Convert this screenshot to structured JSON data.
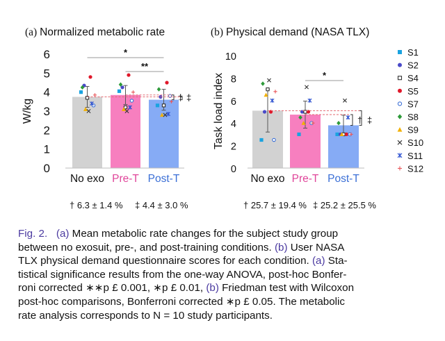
{
  "panels": [
    {
      "id": "a",
      "panel_label": "(a)",
      "title": "Normalized metabolic rate",
      "ylabel": "W/kg",
      "conditions": [
        "No exo",
        "Pre-T",
        "Post-T"
      ],
      "significance": [
        {
          "from": 0,
          "to": 2,
          "text": "*"
        },
        {
          "from": 1,
          "to": 2,
          "text": "**"
        }
      ],
      "daggers": [
        "†",
        "‡"
      ],
      "footer": [
        {
          "symbol": "†",
          "text": "6.3 ± 1.4 %"
        },
        {
          "symbol": "‡",
          "text": "4.4 ± 3.0 %"
        }
      ]
    },
    {
      "id": "b",
      "panel_label": "(b)",
      "title": "Physical demand (NASA TLX)",
      "ylabel": "Task load index",
      "conditions": [
        "No exo",
        "Pre-T",
        "Post-T"
      ],
      "significance": [
        {
          "from": 1,
          "to": 2,
          "text": "*"
        }
      ],
      "daggers": [
        "†",
        "‡"
      ],
      "footer": [
        {
          "symbol": "†",
          "text": "25.7 ± 19.4 %"
        },
        {
          "symbol": "‡",
          "text": "25.2 ± 25.5 %"
        }
      ]
    }
  ],
  "legend": [
    {
      "label": "S1",
      "marker": "square",
      "color": "#1aa3e0"
    },
    {
      "label": "S2",
      "marker": "circle",
      "color": "#4a4ac8"
    },
    {
      "label": "S4",
      "marker": "open-square",
      "color": "#333333"
    },
    {
      "label": "S5",
      "marker": "circle",
      "color": "#e0182a"
    },
    {
      "label": "S7",
      "marker": "open-circle",
      "color": "#3b6fd6"
    },
    {
      "label": "S8",
      "marker": "diamond",
      "color": "#2e9a3a"
    },
    {
      "label": "S9",
      "marker": "triangle",
      "color": "#f2b000"
    },
    {
      "label": "S10",
      "marker": "x",
      "color": "#333333"
    },
    {
      "label": "S11",
      "marker": "star",
      "color": "#2a4fd0"
    },
    {
      "label": "S12",
      "marker": "plus",
      "color": "#e8555a"
    }
  ],
  "colors": {
    "No exo": "#d2d2d2",
    "Pre-T": "#f77fbf",
    "Post-T": "#86abf5",
    "Pre-T label": "#e0459a",
    "Post-T label": "#3b6fd6",
    "reference line": "#e36a72"
  },
  "chart_data": [
    {
      "type": "bar",
      "title": "Normalized metabolic rate",
      "ylabel": "W/kg",
      "categories": [
        "No exo",
        "Pre-T",
        "Post-T"
      ],
      "values": [
        3.75,
        3.85,
        3.6
      ],
      "error": [
        0.55,
        0.5,
        0.55
      ],
      "ylim": [
        0,
        6
      ],
      "yticks": [
        0,
        1,
        2,
        3,
        4,
        5,
        6
      ],
      "grid": false,
      "legend": "right",
      "subjects": {
        "S1": [
          4.0,
          4.05,
          3.3
        ],
        "S2": [
          4.35,
          4.25,
          3.75
        ],
        "S4": [
          3.7,
          3.2,
          3.3
        ],
        "S5": [
          4.8,
          4.9,
          4.5
        ],
        "S7": [
          3.3,
          3.55,
          3.8
        ],
        "S8": [
          4.25,
          4.4,
          4.15
        ],
        "S9": [
          3.1,
          3.1,
          2.8
        ],
        "S10": [
          3.0,
          3.0,
          2.8
        ],
        "S11": [
          3.4,
          3.2,
          2.85
        ],
        "S12": [
          3.85,
          4.0,
          3.5
        ]
      }
    },
    {
      "type": "bar",
      "title": "Physical demand (NASA TLX)",
      "ylabel": "Task load index",
      "categories": [
        "No exo",
        "Pre-T",
        "Post-T"
      ],
      "values": [
        5.1,
        4.75,
        3.8
      ],
      "error": [
        1.9,
        1.2,
        0.9
      ],
      "ylim": [
        0,
        10
      ],
      "yticks": [
        0,
        2,
        4,
        6,
        8,
        10
      ],
      "grid": false,
      "legend": "right",
      "subjects": {
        "S1": [
          2.5,
          3.0,
          3.0
        ],
        "S2": [
          5.0,
          5.0,
          3.0
        ],
        "S4": [
          7.0,
          5.0,
          3.0
        ],
        "S5": [
          5.0,
          5.0,
          3.0
        ],
        "S7": [
          2.5,
          4.0,
          3.0
        ],
        "S8": [
          7.5,
          4.5,
          4.0
        ],
        "S9": [
          6.5,
          4.0,
          3.0
        ],
        "S10": [
          7.8,
          7.2,
          6.0
        ],
        "S11": [
          6.0,
          6.0,
          4.5
        ],
        "S12": [
          6.8,
          4.0,
          3.0
        ]
      }
    }
  ],
  "caption_lines": [
    [
      {
        "t": "Fig. 2.",
        "c": "fig-label"
      },
      {
        "t": "   ",
        "c": ""
      },
      {
        "t": "(a)",
        "c": "ref"
      },
      {
        "t": " Mean metabolic rate changes for the subject study group",
        "c": ""
      }
    ],
    [
      {
        "t": "between no exosuit, pre-, and post-training conditions. ",
        "c": ""
      },
      {
        "t": "(b)",
        "c": "ref"
      },
      {
        "t": " User NASA",
        "c": ""
      }
    ],
    [
      {
        "t": "TLX physical demand questionnaire scores for each condition. ",
        "c": ""
      },
      {
        "t": "(a)",
        "c": "ref"
      },
      {
        "t": " Sta-",
        "c": ""
      }
    ],
    [
      {
        "t": "tistical significance results from the one-way ANOVA, post-hoc Bonfer-",
        "c": ""
      }
    ],
    [
      {
        "t": "roni corrected ∗∗p £ 0.001, ∗p £ 0.01, ",
        "c": ""
      },
      {
        "t": "(b)",
        "c": "ref"
      },
      {
        "t": " Friedman test with Wilcoxon",
        "c": ""
      }
    ],
    [
      {
        "t": "post-hoc comparisons, Bonferroni corrected ∗p £ 0.05. The metabolic",
        "c": ""
      }
    ],
    [
      {
        "t": "rate analysis corresponds to N = 10 study participants.",
        "c": ""
      }
    ]
  ]
}
